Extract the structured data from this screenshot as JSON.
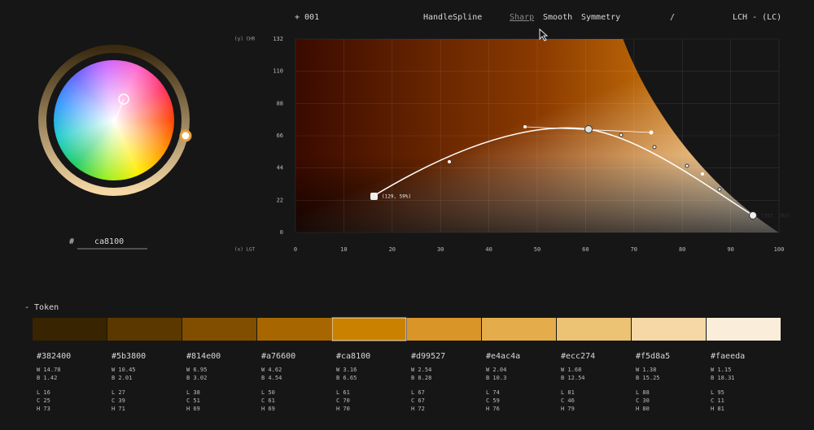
{
  "toolbar": {
    "counter": "+ 001",
    "mode": "HandleSpline",
    "options": [
      "Sharp",
      "Smooth",
      "Symmetry"
    ],
    "separator": "/",
    "space": "LCH - (LC)"
  },
  "graph": {
    "y_label": "(y) CHR",
    "x_label": "(x) LGT",
    "yticks": [
      132,
      110,
      88,
      66,
      44,
      22,
      0
    ],
    "xticks": [
      0,
      10,
      20,
      30,
      40,
      50,
      60,
      70,
      80,
      90,
      100
    ],
    "point_labels": [
      "(129, 59%)",
      "(757, 202)"
    ]
  },
  "picker": {
    "hash": "#",
    "hex": "ca8100"
  },
  "tokens": {
    "title": "- Token",
    "swatches": [
      {
        "hex": "#382400",
        "w": "W 14.78",
        "b": "B 1.42",
        "l": "L 16",
        "c": "C 25",
        "h": "H 73"
      },
      {
        "hex": "#5b3800",
        "w": "W 10.45",
        "b": "B 2.01",
        "l": "L 27",
        "c": "C 39",
        "h": "H 71"
      },
      {
        "hex": "#814e00",
        "w": "W 6.95",
        "b": "B 3.02",
        "l": "L 38",
        "c": "C 51",
        "h": "H 69"
      },
      {
        "hex": "#a76600",
        "w": "W 4.62",
        "b": "B 4.54",
        "l": "L 50",
        "c": "C 61",
        "h": "H 69"
      },
      {
        "hex": "#ca8100",
        "w": "W 3.16",
        "b": "B 6.65",
        "l": "L 61",
        "c": "C 70",
        "h": "H 70"
      },
      {
        "hex": "#d99527",
        "w": "W 2.54",
        "b": "B 8.28",
        "l": "L 67",
        "c": "C 67",
        "h": "H 72"
      },
      {
        "hex": "#e4ac4a",
        "w": "W 2.04",
        "b": "B 10.3",
        "l": "L 74",
        "c": "C 59",
        "h": "H 76"
      },
      {
        "hex": "#ecc274",
        "w": "W 1.68",
        "b": "B 12.54",
        "l": "L 81",
        "c": "C 46",
        "h": "H 79"
      },
      {
        "hex": "#f5d8a5",
        "w": "W 1.38",
        "b": "B 15.25",
        "l": "L 88",
        "c": "C 30",
        "h": "H 80"
      },
      {
        "hex": "#faeeda",
        "w": "W 1.15",
        "b": "B 18.31",
        "l": "L 95",
        "c": "C 11",
        "h": "H 81"
      }
    ]
  }
}
